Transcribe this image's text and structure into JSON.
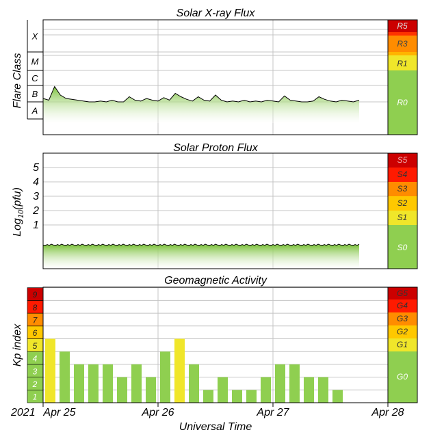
{
  "chart_data": [
    {
      "type": "area",
      "title": "Solar X-ray Flux",
      "ylabel": "Flare Class",
      "scale": "log",
      "class_labels": [
        "X",
        "M",
        "C",
        "B",
        "A"
      ],
      "scale_labels": [
        "R5",
        "R3",
        "R1",
        "R0"
      ],
      "x_range_days": [
        0,
        3.6
      ],
      "x_days": [
        0,
        0.05,
        0.1,
        0.15,
        0.2,
        0.25,
        0.3,
        0.35,
        0.4,
        0.45,
        0.5,
        0.55,
        0.6,
        0.65,
        0.7,
        0.75,
        0.8,
        0.85,
        0.9,
        0.95,
        1.0,
        1.05,
        1.1,
        1.15,
        1.2,
        1.25,
        1.3,
        1.35,
        1.4,
        1.45,
        1.5,
        1.55,
        1.6,
        1.65,
        1.7,
        1.75,
        1.8,
        1.85,
        1.9,
        1.95,
        2.0,
        2.05,
        2.1,
        2.15,
        2.2,
        2.25,
        2.3,
        2.35,
        2.4,
        2.45,
        2.5,
        2.55,
        2.6,
        2.65,
        2.7,
        2.75
      ],
      "y_level": [
        1.2,
        1.1,
        1.9,
        1.4,
        1.2,
        1.15,
        1.1,
        1.05,
        1.0,
        1.0,
        1.05,
        1.0,
        1.1,
        1.0,
        1.0,
        1.3,
        1.1,
        1.05,
        1.2,
        1.1,
        1.05,
        1.25,
        1.1,
        1.5,
        1.3,
        1.15,
        1.05,
        1.3,
        1.1,
        1.05,
        1.4,
        1.1,
        1.0,
        1.05,
        1.0,
        1.1,
        1.0,
        1.05,
        1.0,
        1.1,
        1.05,
        1.0,
        1.35,
        1.1,
        1.05,
        1.0,
        1.0,
        1.05,
        1.3,
        1.15,
        1.05,
        1.0,
        1.1,
        1.05,
        1.0,
        1.1
      ]
    },
    {
      "type": "area",
      "title": "Solar Proton Flux",
      "ylabel": "Log10(pfu)",
      "ylabel_main": "Log",
      "ylabel_sub": "10",
      "ylabel_rest": "(pfu)",
      "yticks": [
        "5",
        "4",
        "3",
        "2",
        "1"
      ],
      "scale_labels": [
        "S5",
        "S4",
        "S3",
        "S2",
        "S1",
        "S0"
      ],
      "x_range_days": [
        0,
        3.6
      ],
      "data_end_day": 2.75,
      "level_log10": -0.65
    },
    {
      "type": "bar",
      "title": "Geomagnetic Activity",
      "ylabel": "Kp index",
      "xlabel": "Universal Time",
      "year_label": "2021",
      "x_tick_labels": [
        "Apr 25",
        "Apr 26",
        "Apr 27",
        "Apr 28"
      ],
      "yticks": [
        "9",
        "8",
        "7",
        "6",
        "5",
        "4",
        "3",
        "2",
        "1"
      ],
      "scale_labels": [
        "G5",
        "G4",
        "G3",
        "G2",
        "G1",
        "G0"
      ],
      "ylim": [
        0,
        9
      ],
      "values": [
        5,
        4,
        3,
        3,
        3,
        2,
        3,
        2,
        4,
        5,
        3,
        1,
        2,
        1,
        1,
        2,
        3,
        3,
        2,
        2,
        1
      ]
    }
  ],
  "colors": {
    "quiet": "#8fcf50",
    "storm_g1": "#f0e62a",
    "storm_g2": "#ffc800",
    "storm_g3": "#ff9a00",
    "storm_g4": "#ff5000",
    "storm_g5": "#cc0000",
    "grid": "#c4c4c4",
    "frame": "#000000"
  }
}
